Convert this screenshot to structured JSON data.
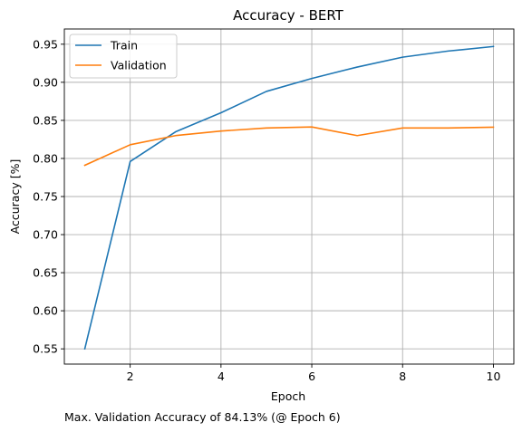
{
  "chart_data": {
    "type": "line",
    "title": "Accuracy - BERT",
    "xlabel": "Epoch",
    "ylabel": "Accuracy [%]",
    "x": [
      1,
      2,
      3,
      4,
      5,
      6,
      7,
      8,
      9,
      10
    ],
    "xticks": [
      2,
      4,
      6,
      8,
      10
    ],
    "yticks": [
      0.55,
      0.6,
      0.65,
      0.7,
      0.75,
      0.8,
      0.85,
      0.9,
      0.95
    ],
    "ytick_labels": [
      "0.55",
      "0.60",
      "0.65",
      "0.70",
      "0.75",
      "0.80",
      "0.85",
      "0.90",
      "0.95"
    ],
    "xlim": [
      0.55,
      10.45
    ],
    "ylim": [
      0.53,
      0.97
    ],
    "grid": true,
    "legend_position": "top-left",
    "series": [
      {
        "name": "Train",
        "color": "#1f77b4",
        "values": [
          0.55,
          0.796,
          0.835,
          0.86,
          0.888,
          0.905,
          0.92,
          0.933,
          0.941,
          0.947
        ]
      },
      {
        "name": "Validation",
        "color": "#ff7f0e",
        "values": [
          0.791,
          0.818,
          0.83,
          0.836,
          0.84,
          0.8413,
          0.83,
          0.84,
          0.84,
          0.841
        ]
      }
    ],
    "annotation": "Max. Validation Accuracy of 84.13% (@ Epoch 6)"
  }
}
